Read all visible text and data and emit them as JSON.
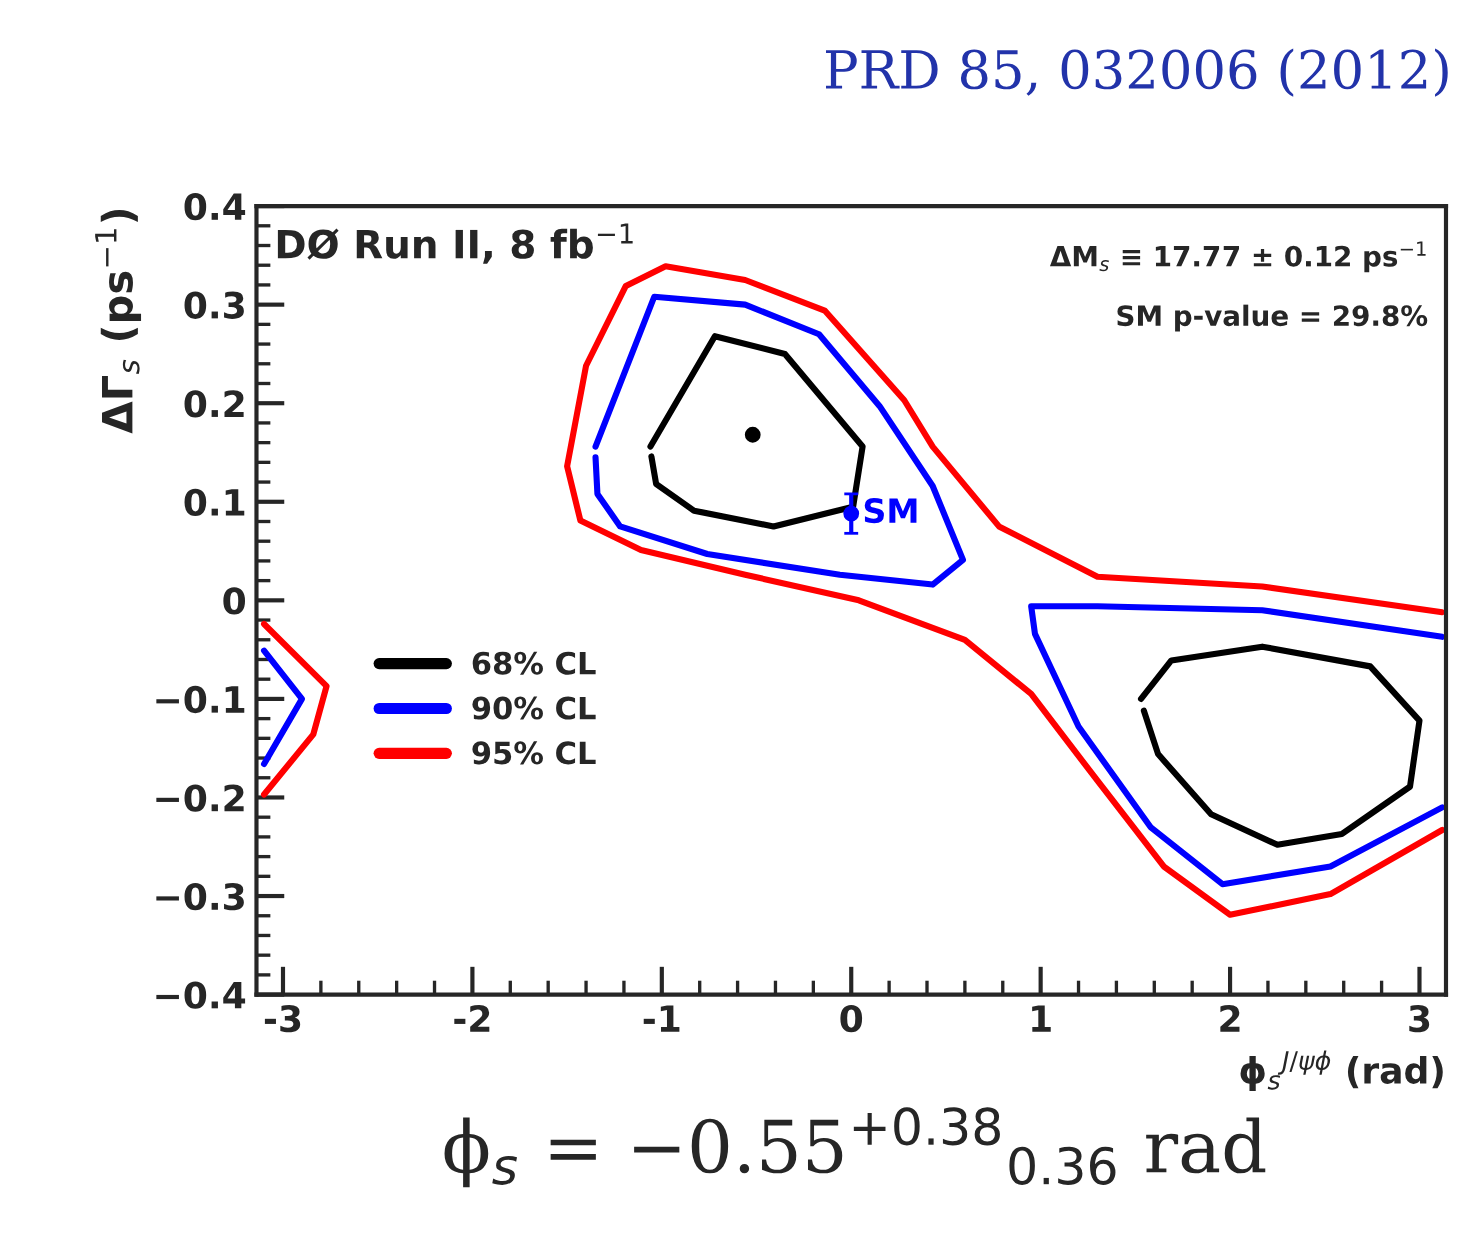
{
  "chart_data": {
    "type": "line",
    "title": "PRD 85, 032006 (2012)",
    "xlabel": "ϕ$_{s}$$^{J/ψϕ}$ (rad)",
    "ylabel": "ΔΓ$_{s}$ (ps$^{−1}$)",
    "xlim": [
      -3.14,
      3.14
    ],
    "xticks": [
      -3,
      -2,
      -1,
      0,
      1,
      2,
      3
    ],
    "ylim": [
      -0.4,
      0.4
    ],
    "yticks": [
      {
        "value": -0.4,
        "label": "−0.4"
      },
      {
        "value": -0.3,
        "label": "−0.3"
      },
      {
        "value": -0.2,
        "label": "−0.2"
      },
      {
        "value": -0.1,
        "label": "−0.1"
      },
      0,
      0.1,
      0.2,
      0.3,
      0.4
    ],
    "grid": false,
    "legend": "left",
    "line_style": "solid",
    "marker": "none",
    "series": [
      {
        "name": "68% CL",
        "color": "#000000",
        "x": [
          -1.06,
          -0.72,
          -0.35,
          0.06,
          0.01,
          -0.41,
          -0.83,
          -1.03,
          -1.055,
          null,
          1.53,
          1.69,
          2.17,
          2.74,
          3.0,
          2.95,
          2.59,
          2.25,
          1.9,
          1.62,
          1.545
        ],
        "values": [
          0.156,
          0.268,
          0.25,
          0.156,
          0.095,
          0.075,
          0.091,
          0.118,
          0.146,
          null,
          -0.1,
          -0.061,
          -0.047,
          -0.067,
          -0.122,
          -0.189,
          -0.237,
          -0.248,
          -0.217,
          -0.156,
          -0.112
        ]
      },
      {
        "name": "90% CL",
        "color": "#0000ff",
        "x": [
          -1.35,
          -1.04,
          -0.56,
          -0.17,
          0.15,
          0.43,
          0.59,
          0.43,
          -0.06,
          -0.76,
          -1.22,
          -1.34,
          -1.35,
          null,
          3.12,
          2.17,
          1.3,
          0.95,
          0.97,
          1.2,
          1.58,
          1.96,
          2.53,
          3.12,
          null,
          -3.1,
          -2.9,
          -3.1
        ],
        "values": [
          0.156,
          0.308,
          0.3,
          0.27,
          0.197,
          0.116,
          0.041,
          0.016,
          0.026,
          0.047,
          0.075,
          0.108,
          0.145,
          null,
          -0.037,
          -0.01,
          -0.006,
          -0.006,
          -0.034,
          -0.128,
          -0.23,
          -0.288,
          -0.27,
          -0.21,
          null,
          -0.051,
          -0.1,
          -0.166
        ]
      },
      {
        "name": "95% CL",
        "color": "#ff0000",
        "x": [
          3.12,
          2.17,
          1.3,
          0.78,
          0.43,
          0.28,
          -0.14,
          -0.56,
          -0.98,
          -1.19,
          -1.4,
          -1.5,
          -1.43,
          -1.11,
          -0.56,
          0.04,
          0.6,
          0.95,
          1.3,
          1.65,
          2.0,
          2.53,
          3.12,
          null,
          -3.1,
          -2.77,
          -2.84,
          -3.1
        ],
        "values": [
          -0.012,
          0.014,
          0.024,
          0.075,
          0.156,
          0.203,
          0.294,
          0.325,
          0.339,
          0.319,
          0.238,
          0.136,
          0.081,
          0.051,
          0.026,
          0.0,
          -0.04,
          -0.095,
          -0.183,
          -0.27,
          -0.319,
          -0.298,
          -0.233,
          null,
          -0.024,
          -0.087,
          -0.136,
          -0.197
        ]
      },
      {
        "color": "#000000",
        "type": "scatter",
        "marker": "circle",
        "x": [
          -0.52
        ],
        "values": [
          0.168
        ]
      },
      {
        "name": "SM",
        "color": "#0000ff",
        "type": "scatter",
        "marker": "circle",
        "x": [
          0.0
        ],
        "values": [
          0.088
        ],
        "errors": [
          0.02
        ]
      }
    ],
    "annotations": [
      "DØ Run II, 8 fb$^{−1}$",
      "ΔM$_{s}$ ≡ 17.77 ± 0.12 ps$^{−1}$",
      "SM p-value = 29.8%",
      "ϕ$_{s}$ = −0.55$^{+0.38}$$_{0.36}$ rad"
    ]
  }
}
